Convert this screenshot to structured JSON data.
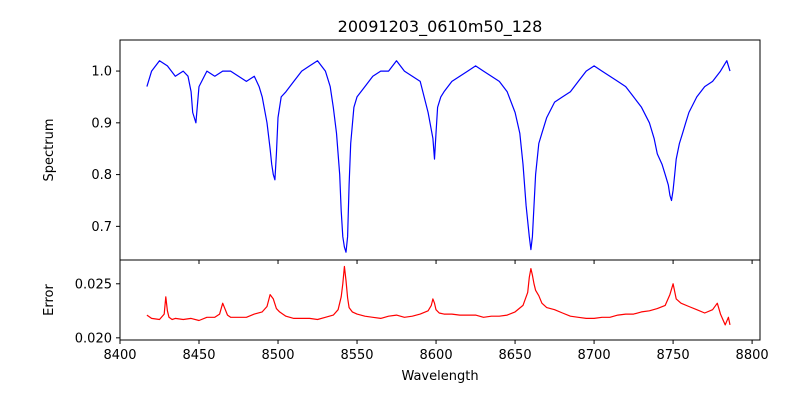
{
  "chart_data": [
    {
      "type": "line",
      "title": "20091203_0610m50_128",
      "xlabel": "",
      "ylabel": "Spectrum",
      "xlim": [
        8400,
        8805
      ],
      "ylim": [
        0.635,
        1.06
      ],
      "xticks": [
        8400,
        8450,
        8500,
        8550,
        8600,
        8650,
        8700,
        8750,
        8800
      ],
      "yticks": [
        0.7,
        0.8,
        0.9,
        1.0
      ],
      "ytick_labels": [
        "0.7",
        "0.8",
        "0.9",
        "1.0"
      ],
      "show_xtick_labels": false,
      "grid": false,
      "series": [
        {
          "color": "#0000ff",
          "x": [
            8417,
            8420,
            8425,
            8430,
            8435,
            8440,
            8443,
            8445,
            8446,
            8448,
            8450,
            8455,
            8460,
            8465,
            8470,
            8475,
            8480,
            8485,
            8488,
            8490,
            8493,
            8495,
            8496,
            8497,
            8498,
            8499,
            8500,
            8502,
            8505,
            8510,
            8515,
            8520,
            8525,
            8530,
            8533,
            8535,
            8537,
            8539,
            8540,
            8541,
            8542,
            8543,
            8544,
            8545,
            8546,
            8548,
            8550,
            8555,
            8560,
            8565,
            8570,
            8575,
            8580,
            8585,
            8590,
            8595,
            8598,
            8599,
            8600,
            8601,
            8603,
            8605,
            8610,
            8615,
            8620,
            8625,
            8630,
            8635,
            8640,
            8645,
            8650,
            8653,
            8655,
            8657,
            8659,
            8660,
            8661,
            8662,
            8663,
            8664,
            8665,
            8667,
            8670,
            8675,
            8680,
            8685,
            8690,
            8695,
            8700,
            8705,
            8710,
            8715,
            8720,
            8725,
            8730,
            8735,
            8738,
            8740,
            8743,
            8745,
            8747,
            8748,
            8749,
            8750,
            8751,
            8752,
            8754,
            8756,
            8758,
            8760,
            8765,
            8770,
            8775,
            8780,
            8784,
            8786
          ],
          "y": [
            0.97,
            1.0,
            1.02,
            1.01,
            0.99,
            1.0,
            0.99,
            0.96,
            0.92,
            0.9,
            0.97,
            1.0,
            0.99,
            1.0,
            1.0,
            0.99,
            0.98,
            0.99,
            0.97,
            0.95,
            0.9,
            0.85,
            0.82,
            0.8,
            0.79,
            0.84,
            0.91,
            0.95,
            0.96,
            0.98,
            1.0,
            1.01,
            1.02,
            1.0,
            0.97,
            0.93,
            0.88,
            0.8,
            0.73,
            0.68,
            0.66,
            0.65,
            0.68,
            0.78,
            0.86,
            0.93,
            0.95,
            0.97,
            0.99,
            1.0,
            1.0,
            1.02,
            1.0,
            0.99,
            0.98,
            0.92,
            0.87,
            0.83,
            0.88,
            0.93,
            0.95,
            0.96,
            0.98,
            0.99,
            1.0,
            1.01,
            1.0,
            0.99,
            0.98,
            0.96,
            0.92,
            0.88,
            0.82,
            0.74,
            0.68,
            0.655,
            0.68,
            0.74,
            0.8,
            0.83,
            0.86,
            0.88,
            0.91,
            0.94,
            0.95,
            0.96,
            0.98,
            1.0,
            1.01,
            1.0,
            0.99,
            0.98,
            0.97,
            0.95,
            0.93,
            0.9,
            0.87,
            0.84,
            0.82,
            0.8,
            0.78,
            0.76,
            0.75,
            0.77,
            0.8,
            0.83,
            0.86,
            0.88,
            0.9,
            0.92,
            0.95,
            0.97,
            0.98,
            1.0,
            1.02,
            1.0
          ]
        }
      ]
    },
    {
      "type": "line",
      "title": "",
      "xlabel": "Wavelength",
      "ylabel": "Error",
      "xlim": [
        8400,
        8805
      ],
      "ylim": [
        0.0198,
        0.0272
      ],
      "xticks": [
        8400,
        8450,
        8500,
        8550,
        8600,
        8650,
        8700,
        8750,
        8800
      ],
      "xtick_labels": [
        "8400",
        "8450",
        "8500",
        "8550",
        "8600",
        "8650",
        "8700",
        "8750",
        "8800"
      ],
      "yticks": [
        0.02,
        0.025
      ],
      "ytick_labels": [
        "0.020",
        "0.025"
      ],
      "show_xtick_labels": true,
      "grid": false,
      "series": [
        {
          "color": "#ff0000",
          "x": [
            8417,
            8420,
            8425,
            8428,
            8429,
            8430,
            8431,
            8433,
            8435,
            8440,
            8445,
            8450,
            8455,
            8460,
            8463,
            8465,
            8468,
            8470,
            8475,
            8480,
            8485,
            8490,
            8493,
            8495,
            8497,
            8499,
            8501,
            8503,
            8505,
            8510,
            8515,
            8520,
            8525,
            8530,
            8535,
            8538,
            8540,
            8541,
            8542,
            8543,
            8544,
            8545,
            8547,
            8550,
            8555,
            8560,
            8565,
            8570,
            8575,
            8580,
            8585,
            8590,
            8595,
            8597,
            8598,
            8599,
            8600,
            8602,
            8605,
            8610,
            8615,
            8620,
            8625,
            8630,
            8635,
            8640,
            8645,
            8650,
            8655,
            8658,
            8659,
            8660,
            8661,
            8662,
            8663,
            8665,
            8667,
            8670,
            8675,
            8680,
            8685,
            8690,
            8695,
            8700,
            8705,
            8710,
            8715,
            8720,
            8725,
            8730,
            8735,
            8740,
            8745,
            8748,
            8750,
            8752,
            8755,
            8760,
            8765,
            8770,
            8775,
            8778,
            8780,
            8783,
            8785,
            8786
          ],
          "y": [
            0.0221,
            0.0218,
            0.0217,
            0.0222,
            0.0238,
            0.0225,
            0.0219,
            0.0217,
            0.0218,
            0.0217,
            0.0218,
            0.0216,
            0.0219,
            0.0219,
            0.0222,
            0.0232,
            0.0221,
            0.0219,
            0.0219,
            0.0219,
            0.0222,
            0.0224,
            0.0229,
            0.024,
            0.0236,
            0.0227,
            0.0224,
            0.0222,
            0.022,
            0.0218,
            0.0218,
            0.0218,
            0.0217,
            0.0219,
            0.0221,
            0.0226,
            0.0238,
            0.025,
            0.0266,
            0.0253,
            0.0237,
            0.0228,
            0.0224,
            0.0222,
            0.022,
            0.0219,
            0.0218,
            0.022,
            0.0221,
            0.0219,
            0.022,
            0.0222,
            0.0225,
            0.023,
            0.0236,
            0.0232,
            0.0226,
            0.0223,
            0.0222,
            0.0222,
            0.0221,
            0.0221,
            0.0221,
            0.0219,
            0.022,
            0.022,
            0.0221,
            0.0224,
            0.023,
            0.0242,
            0.0256,
            0.0264,
            0.0258,
            0.025,
            0.0244,
            0.0239,
            0.0232,
            0.0228,
            0.0226,
            0.0223,
            0.022,
            0.0219,
            0.0218,
            0.0218,
            0.0219,
            0.0219,
            0.0221,
            0.0222,
            0.0222,
            0.0224,
            0.0225,
            0.0227,
            0.023,
            0.024,
            0.025,
            0.0236,
            0.0232,
            0.0229,
            0.0226,
            0.0223,
            0.0226,
            0.0232,
            0.0222,
            0.0212,
            0.0219,
            0.0212
          ]
        }
      ]
    }
  ]
}
